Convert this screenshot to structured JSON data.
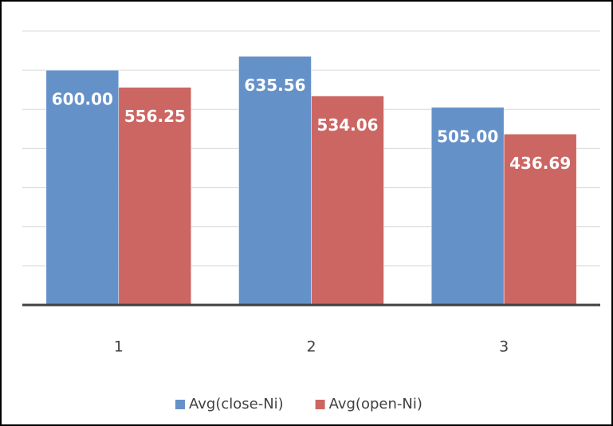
{
  "chart_data": {
    "type": "bar",
    "categories": [
      "1",
      "2",
      "3"
    ],
    "series": [
      {
        "name": "Avg(close-Ni)",
        "color": "#6591c9",
        "values": [
          600.0,
          635.56,
          505.0
        ],
        "value_labels": [
          "600.00",
          "635.56",
          "505.00"
        ]
      },
      {
        "name": "Avg(open-Ni)",
        "color": "#cc6663",
        "values": [
          556.25,
          534.06,
          436.69
        ],
        "value_labels": [
          "556.25",
          "534.06",
          "436.69"
        ]
      }
    ],
    "ylim": [
      0,
      700
    ],
    "yticks": [
      0,
      100,
      200,
      300,
      400,
      500,
      600,
      700
    ],
    "grid": true
  }
}
